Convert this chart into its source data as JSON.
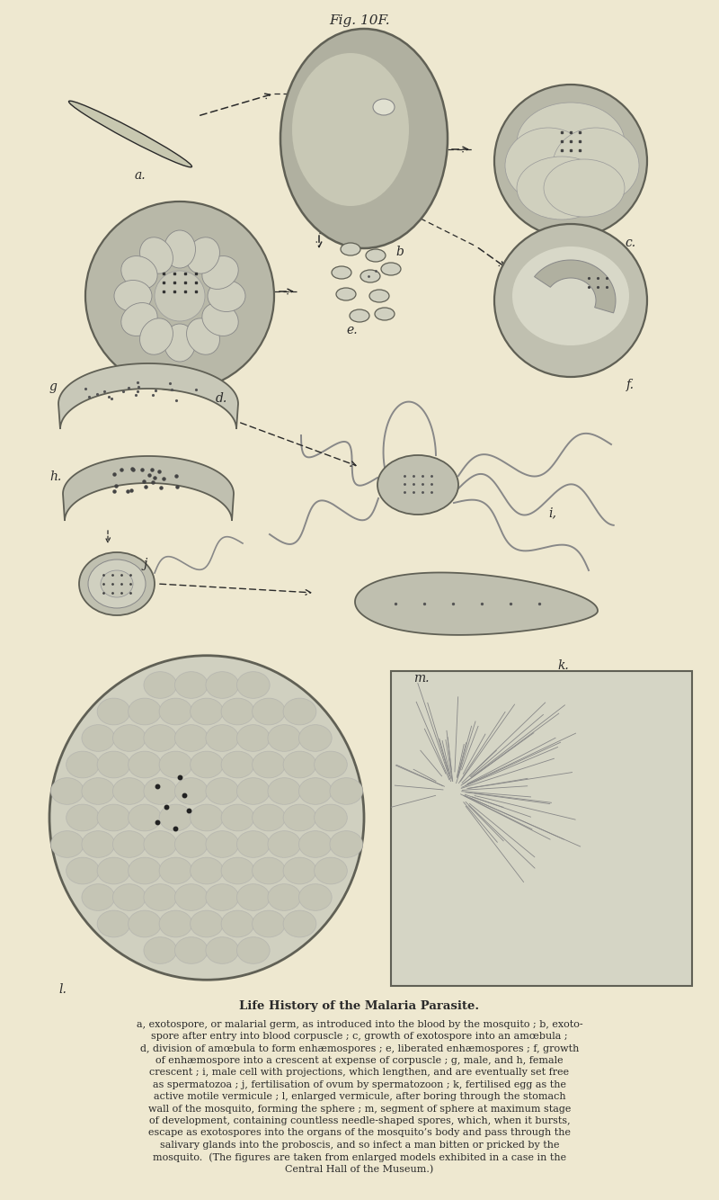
{
  "bg_color": "#eee8d0",
  "title": "Fig. 10F.",
  "caption_title": "Life History of the Malaria Parasite.",
  "caption_body": "a, exotospore, or malarial germ, as introduced into the blood by the mosquito ; b, exoto-\nspore after entry into blood corpuscle ; c, growth of exotospore into an amœbula ;\nd, division of amœbula to form enhæmospores ; e, liberated enhæmospores ; f, growth\nof enhæmospore into a crescent at expense of corpuscle ; g, male, and h, female\ncrescent ; i, male cell with projections, which lengthen, and are eventually set free\nas spermatozoa ; j, fertilisation of ovum by spermatozoon ; k, fertilised egg as the\nactive motile vermicule ; l, enlarged vermicule, after boring through the stomach\nwall of the mosquito, forming the sphere ; m, segment of sphere at maximum stage\nof development, containing countless needle-shaped spores, which, when it bursts,\nescape as exotospores into the organs of the mosquito’s body and pass through the\nsalivary glands into the proboscis, and so infect a man bitten or pricked by the\nmosquito.  (The figures are taken from enlarged models exhibited in a case in the\nCentral Hall of the Museum.)",
  "dc": "#2a2a2a",
  "cell_fill_dark": "#a8a898",
  "cell_fill_mid": "#bebead",
  "cell_fill_light": "#d4d4c4",
  "cell_edge": "#606055"
}
